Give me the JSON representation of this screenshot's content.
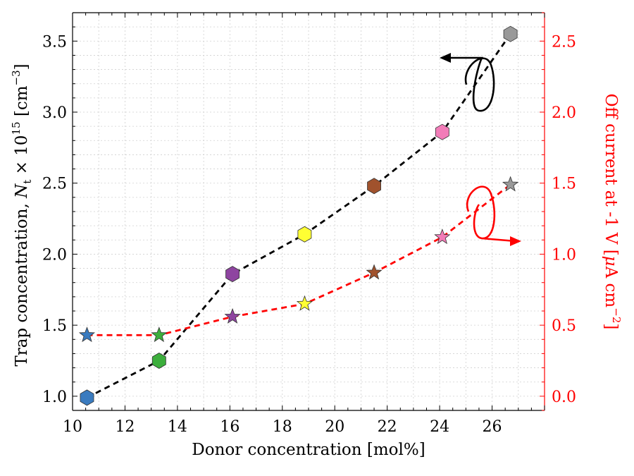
{
  "chart_data": {
    "type": "scatter",
    "xlabel": "Donor concentration [mol%]",
    "ylabel_left": {
      "text": "Trap concentration, ",
      "symbol": "N",
      "subscript": "t",
      "times": " × 10",
      "exponent": "15",
      "unit_open": " [cm",
      "unit_exp": "−3",
      "unit_close": "]"
    },
    "ylabel_right": {
      "text": "Off current at -1 V [",
      "mu": "μ",
      "unit": "A cm",
      "unit_exp": "−2",
      "unit_close": "]"
    },
    "xlim": [
      10,
      28
    ],
    "ylim_left": [
      0.9,
      3.7
    ],
    "ylim_right": [
      -0.1,
      2.7
    ],
    "xticks": [
      10,
      12,
      14,
      16,
      18,
      20,
      22,
      24,
      26
    ],
    "yticks_left": [
      1.0,
      1.5,
      2.0,
      2.5,
      3.0,
      3.5
    ],
    "yticks_right": [
      0.0,
      0.5,
      1.0,
      1.5,
      2.0,
      2.5
    ],
    "grid": true,
    "series": [
      {
        "axis": "left",
        "marker": "hexagon",
        "line_color": "#000000",
        "x": [
          10.55,
          13.3,
          16.1,
          18.85,
          21.5,
          24.1,
          26.7
        ],
        "y": [
          0.99,
          1.25,
          1.86,
          2.14,
          2.48,
          2.86,
          3.55
        ],
        "colors": [
          "#3a7bbf",
          "#3cae3c",
          "#8e44a0",
          "#ffff33",
          "#a0522d",
          "#f27cb8",
          "#999999"
        ]
      },
      {
        "axis": "right",
        "marker": "star",
        "line_color": "#ff0000",
        "x": [
          10.55,
          13.3,
          16.1,
          18.85,
          21.5,
          24.1,
          26.7
        ],
        "y": [
          0.43,
          0.43,
          0.56,
          0.65,
          0.87,
          1.12,
          1.49
        ],
        "colors": [
          "#3a7bbf",
          "#3cae3c",
          "#8e44a0",
          "#ffff33",
          "#a0522d",
          "#f27cb8",
          "#999999"
        ]
      }
    ],
    "colors": {
      "left_axis": "#000000",
      "right_axis": "#ff0000",
      "grid": "#d0d0d0"
    }
  }
}
